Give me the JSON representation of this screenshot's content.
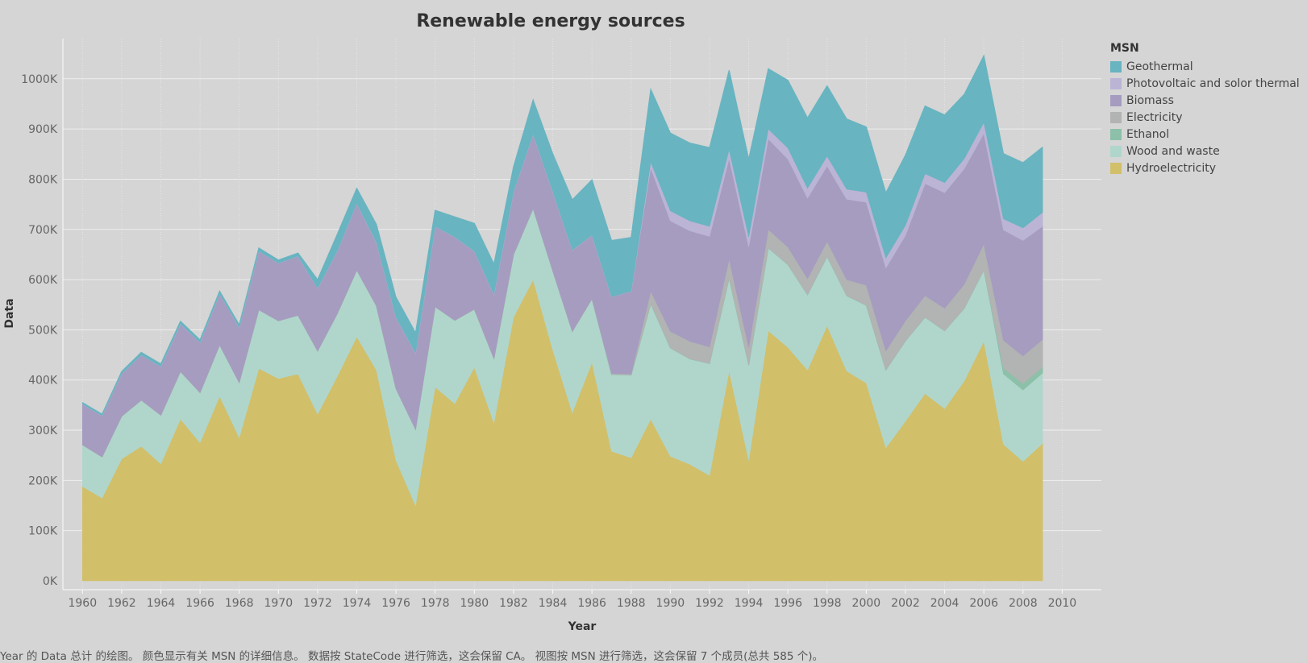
{
  "chart_data": {
    "type": "area",
    "title": "Renewable energy sources",
    "xlabel": "Year",
    "ylabel": "Data",
    "stacked": true,
    "grid": true,
    "legend_position": "right",
    "xlim": [
      1959,
      2012
    ],
    "ylim": [
      0,
      1100000
    ],
    "x_ticks": [
      1960,
      1962,
      1964,
      1966,
      1968,
      1970,
      1972,
      1974,
      1976,
      1978,
      1980,
      1982,
      1984,
      1986,
      1988,
      1990,
      1992,
      1994,
      1996,
      1998,
      2000,
      2002,
      2004,
      2006,
      2008,
      2010
    ],
    "y_ticks": [
      0,
      100000,
      200000,
      300000,
      400000,
      500000,
      600000,
      700000,
      800000,
      900000,
      1000000
    ],
    "y_tick_labels": [
      "0K",
      "100K",
      "200K",
      "300K",
      "400K",
      "500K",
      "600K",
      "700K",
      "800K",
      "900K",
      "1000K"
    ],
    "x": [
      1960,
      1961,
      1962,
      1963,
      1964,
      1965,
      1966,
      1967,
      1968,
      1969,
      1970,
      1971,
      1972,
      1973,
      1974,
      1975,
      1976,
      1977,
      1978,
      1979,
      1980,
      1981,
      1982,
      1983,
      1984,
      1985,
      1986,
      1987,
      1988,
      1989,
      1990,
      1991,
      1992,
      1993,
      1994,
      1995,
      1996,
      1997,
      1998,
      1999,
      2000,
      2001,
      2002,
      2003,
      2004,
      2005,
      2006,
      2007,
      2008,
      2009
    ],
    "legend_title": "MSN",
    "series": [
      {
        "name": "Hydroelectricity",
        "color": "#d1bf6a",
        "values": [
          188000,
          165000,
          243000,
          268000,
          233000,
          322000,
          275000,
          368000,
          285000,
          423000,
          403000,
          412000,
          332000,
          407000,
          486000,
          420000,
          240000,
          150000,
          386000,
          353000,
          425000,
          315000,
          525000,
          600000,
          460000,
          335000,
          435000,
          258000,
          245000,
          322000,
          248000,
          232000,
          210000,
          418000,
          240000,
          498000,
          465000,
          420000,
          508000,
          418000,
          394000,
          265000,
          318000,
          373000,
          343000,
          398000,
          477000,
          272000,
          238000,
          274000
        ]
      },
      {
        "name": "Wood and waste",
        "color": "#b0d6cc",
        "values": [
          83000,
          82000,
          85000,
          92000,
          97000,
          95000,
          100000,
          102000,
          110000,
          117000,
          115000,
          117000,
          126000,
          125000,
          133000,
          128000,
          143000,
          152000,
          160000,
          166000,
          116000,
          128000,
          125000,
          142000,
          158000,
          162000,
          127000,
          153000,
          165000,
          230000,
          216000,
          210000,
          223000,
          185000,
          190000,
          165000,
          165000,
          150000,
          138000,
          150000,
          155000,
          155000,
          160000,
          152000,
          155000,
          145000,
          142000,
          140000,
          142000,
          140000
        ]
      },
      {
        "name": "Ethanol",
        "color": "#8cc0a9",
        "values": [
          0,
          0,
          0,
          0,
          0,
          0,
          0,
          0,
          0,
          0,
          0,
          0,
          0,
          0,
          0,
          0,
          0,
          0,
          0,
          0,
          0,
          0,
          0,
          0,
          0,
          0,
          0,
          0,
          0,
          0,
          0,
          0,
          0,
          0,
          0,
          0,
          0,
          0,
          0,
          0,
          0,
          0,
          0,
          0,
          0,
          0,
          0,
          12000,
          13000,
          12000
        ]
      },
      {
        "name": "Electricity",
        "color": "#b2b3b3",
        "values": [
          0,
          0,
          0,
          0,
          0,
          0,
          0,
          0,
          0,
          0,
          0,
          0,
          0,
          0,
          0,
          0,
          0,
          0,
          0,
          0,
          0,
          0,
          0,
          0,
          0,
          0,
          0,
          2000,
          2000,
          25000,
          33000,
          35000,
          33000,
          38000,
          35000,
          37000,
          35000,
          32000,
          30000,
          32000,
          40000,
          38000,
          40000,
          43000,
          45000,
          48000,
          52000,
          55000,
          55000,
          55000
        ]
      },
      {
        "name": "Biomass",
        "color": "#a59cc0",
        "values": [
          81000,
          82000,
          85000,
          90000,
          97000,
          95000,
          100000,
          102000,
          110000,
          117000,
          115000,
          118000,
          125000,
          125000,
          133000,
          127000,
          142000,
          152000,
          160000,
          166000,
          116000,
          128000,
          125000,
          148000,
          158000,
          162000,
          127000,
          153000,
          165000,
          245000,
          220000,
          220000,
          220000,
          200000,
          200000,
          180000,
          175000,
          160000,
          150000,
          160000,
          165000,
          165000,
          170000,
          223000,
          230000,
          230000,
          220000,
          220000,
          230000,
          225000
        ]
      },
      {
        "name": "Photovoltaic and solor thermal",
        "color": "#bbb4d5",
        "values": [
          0,
          0,
          0,
          0,
          0,
          0,
          0,
          0,
          0,
          0,
          0,
          0,
          0,
          0,
          0,
          0,
          0,
          0,
          0,
          0,
          0,
          0,
          0,
          0,
          0,
          0,
          0,
          0,
          0,
          12000,
          20000,
          20000,
          20000,
          18000,
          20000,
          20000,
          22000,
          20000,
          20000,
          20000,
          20000,
          20000,
          20000,
          20000,
          20000,
          20000,
          22000,
          22000,
          25000,
          28000
        ]
      },
      {
        "name": "Geothermal",
        "color": "#68b4c1",
        "values": [
          3000,
          3000,
          4000,
          5000,
          5000,
          5000,
          5000,
          5000,
          5000,
          6000,
          6000,
          6000,
          17000,
          33000,
          30000,
          35000,
          40000,
          40000,
          32000,
          40000,
          55000,
          60000,
          50000,
          68000,
          75000,
          100000,
          110000,
          112000,
          107000,
          145000,
          155000,
          155000,
          157000,
          158000,
          155000,
          120000,
          135000,
          140000,
          140000,
          140000,
          130000,
          130000,
          140000,
          135000,
          135000,
          128000,
          133000,
          130000,
          130000,
          130000
        ]
      }
    ]
  },
  "caption": "Year 的 Data 总计 的绘图。 颜色显示有关 MSN 的详细信息。 数据按 StateCode 进行筛选，这会保留 CA。 视图按 MSN 进行筛选，这会保留 7 个成员(总共 585 个)。"
}
